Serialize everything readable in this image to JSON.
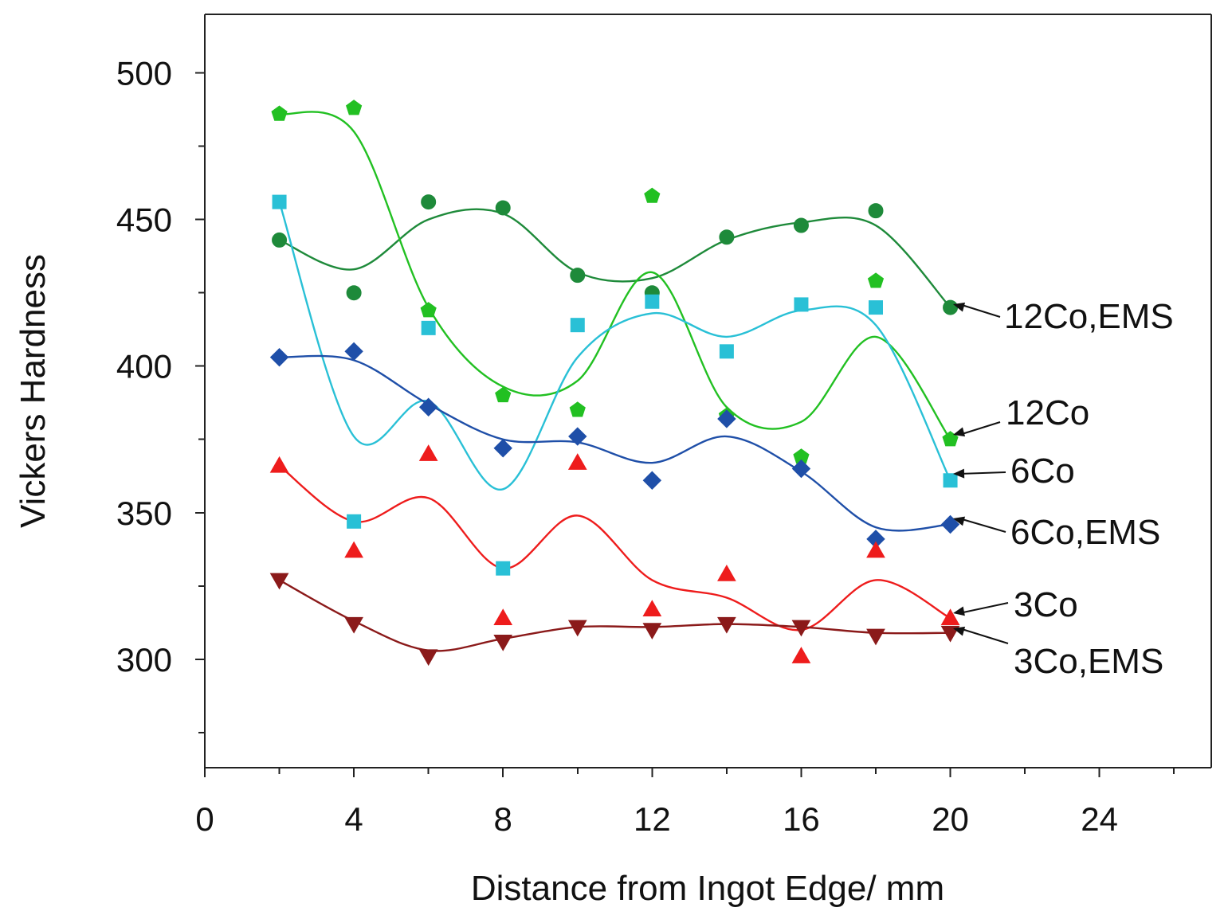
{
  "chart_data": {
    "type": "scatter",
    "title": "",
    "xlabel": "Distance from Ingot Edge/ mm",
    "ylabel": "Vickers Hardness",
    "xlim": [
      0,
      27
    ],
    "ylim": [
      263,
      520
    ],
    "x_ticks": [
      0,
      4,
      8,
      12,
      16,
      20,
      24
    ],
    "y_ticks": [
      300,
      350,
      400,
      450,
      500
    ],
    "x_minor_ticks": [
      2,
      6,
      10,
      14,
      18,
      22,
      26
    ],
    "y_minor_ticks": [
      275,
      325,
      375,
      425,
      475
    ],
    "x": [
      2,
      4,
      6,
      8,
      10,
      12,
      14,
      16,
      18,
      20
    ],
    "series": [
      {
        "name": "12Co,EMS",
        "marker": "circle",
        "color": "#1e8a3a",
        "values": [
          443,
          425,
          456,
          454,
          431,
          425,
          444,
          448,
          453,
          420
        ],
        "fit": [
          443,
          433,
          450,
          452,
          432,
          430,
          443,
          449,
          448,
          420
        ]
      },
      {
        "name": "12Co",
        "marker": "pentagon",
        "color": "#22c022",
        "values": [
          486,
          488,
          419,
          390,
          385,
          458,
          383,
          369,
          429,
          375
        ],
        "fit": [
          486,
          480,
          420,
          393,
          395,
          432,
          386,
          381,
          410,
          375
        ]
      },
      {
        "name": "6Co",
        "marker": "square",
        "color": "#29c0d6",
        "values": [
          456,
          347,
          413,
          331,
          414,
          422,
          405,
          421,
          420,
          361
        ],
        "fit": [
          456,
          376,
          388,
          358,
          403,
          418,
          410,
          419,
          414,
          361
        ]
      },
      {
        "name": "6Co,EMS",
        "marker": "diamond",
        "color": "#1f4fa8",
        "values": [
          403,
          405,
          386,
          372,
          376,
          361,
          382,
          365,
          341,
          346
        ],
        "fit": [
          403,
          402,
          387,
          375,
          374,
          367,
          376,
          364,
          345,
          346
        ]
      },
      {
        "name": "3Co",
        "marker": "triangle-up",
        "color": "#ee1c1c",
        "values": [
          366,
          337,
          370,
          314,
          367,
          317,
          329,
          301,
          337,
          314
        ],
        "fit": [
          366,
          347,
          355,
          331,
          349,
          327,
          321,
          310,
          327,
          314
        ]
      },
      {
        "name": "3Co,EMS",
        "marker": "triangle-down",
        "color": "#8b1a1a",
        "values": [
          327,
          312,
          301,
          306,
          311,
          310,
          312,
          311,
          308,
          309
        ],
        "fit": [
          327,
          313,
          303,
          307,
          311,
          311,
          312,
          311,
          309,
          309
        ]
      }
    ],
    "annotations": [
      {
        "text": "12Co,EMS",
        "points_to_series": "12Co,EMS"
      },
      {
        "text": "12Co",
        "points_to_series": "12Co"
      },
      {
        "text": "6Co",
        "points_to_series": "6Co"
      },
      {
        "text": "6Co,EMS",
        "points_to_series": "6Co,EMS"
      },
      {
        "text": "3Co",
        "points_to_series": "3Co"
      },
      {
        "text": "3Co,EMS",
        "points_to_series": "3Co,EMS"
      }
    ]
  }
}
